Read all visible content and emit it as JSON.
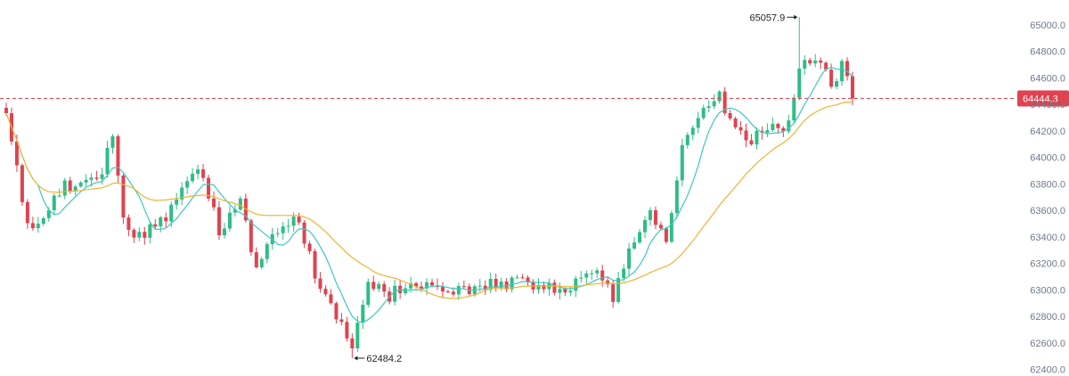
{
  "colors": {
    "up": "#2ebd85",
    "down": "#e0424f",
    "ma_fast": "#3fc8bd",
    "ma_slow": "#f0b335",
    "last_price_line": "#e0424f",
    "axis_text": "#707a8a",
    "annotation_text": "#1e2329"
  },
  "chart_data": {
    "type": "candlestick",
    "title": "",
    "xlabel": "",
    "ylabel": "",
    "grid": false,
    "ylim": [
      62390,
      65080
    ],
    "y_ticks": [
      {
        "value": 65000,
        "label": "65000.0"
      },
      {
        "value": 64800,
        "label": "64800.0"
      },
      {
        "value": 64600,
        "label": "64600.0"
      },
      {
        "value": 64400,
        "label": "64400.0"
      },
      {
        "value": 64200,
        "label": "64200.0"
      },
      {
        "value": 64000,
        "label": "64000.0"
      },
      {
        "value": 63800,
        "label": "63800.0"
      },
      {
        "value": 63600,
        "label": "63600.0"
      },
      {
        "value": 63400,
        "label": "63400.0"
      },
      {
        "value": 63200,
        "label": "63200.0"
      },
      {
        "value": 63000,
        "label": "63000.0"
      },
      {
        "value": 62800,
        "label": "62800.0"
      },
      {
        "value": 62600,
        "label": "62600.0"
      },
      {
        "value": 62400,
        "label": "62400.0"
      }
    ],
    "last_price": {
      "value": 64444.3,
      "label": "64444.3"
    },
    "max_annotation": {
      "index": 149,
      "value": 65057.9,
      "label": "65057.9"
    },
    "min_annotation": {
      "index": 65,
      "value": 62484.2,
      "label": "62484.2"
    },
    "anchors": [
      {
        "i": 0,
        "p": 64330
      },
      {
        "i": 2,
        "p": 63900
      },
      {
        "i": 4,
        "p": 63450
      },
      {
        "i": 7,
        "p": 63520
      },
      {
        "i": 11,
        "p": 63800
      },
      {
        "i": 17,
        "p": 63800
      },
      {
        "i": 20,
        "p": 64150
      },
      {
        "i": 22,
        "p": 63500
      },
      {
        "i": 25,
        "p": 63400
      },
      {
        "i": 30,
        "p": 63550
      },
      {
        "i": 36,
        "p": 63950
      },
      {
        "i": 40,
        "p": 63450
      },
      {
        "i": 44,
        "p": 63700
      },
      {
        "i": 47,
        "p": 63150
      },
      {
        "i": 50,
        "p": 63400
      },
      {
        "i": 55,
        "p": 63550
      },
      {
        "i": 58,
        "p": 63100
      },
      {
        "i": 61,
        "p": 62850
      },
      {
        "i": 65,
        "p": 62600
      },
      {
        "i": 68,
        "p": 63050
      },
      {
        "i": 72,
        "p": 62950
      },
      {
        "i": 76,
        "p": 63100
      },
      {
        "i": 82,
        "p": 62950
      },
      {
        "i": 90,
        "p": 63050
      },
      {
        "i": 98,
        "p": 63050
      },
      {
        "i": 104,
        "p": 62980
      },
      {
        "i": 110,
        "p": 63150
      },
      {
        "i": 114,
        "p": 62950
      },
      {
        "i": 118,
        "p": 63400
      },
      {
        "i": 121,
        "p": 63550
      },
      {
        "i": 124,
        "p": 63350
      },
      {
        "i": 127,
        "p": 64100
      },
      {
        "i": 131,
        "p": 64350
      },
      {
        "i": 134,
        "p": 64450
      },
      {
        "i": 137,
        "p": 64200
      },
      {
        "i": 140,
        "p": 64150
      },
      {
        "i": 144,
        "p": 64200
      },
      {
        "i": 147,
        "p": 64250
      },
      {
        "i": 149,
        "p": 64700
      },
      {
        "i": 152,
        "p": 64750
      },
      {
        "i": 155,
        "p": 64550
      },
      {
        "i": 157,
        "p": 64700
      },
      {
        "i": 159,
        "p": 64444.3
      }
    ],
    "series": [
      {
        "name": "",
        "kind": "ma_fast"
      },
      {
        "name": "",
        "kind": "ma_slow"
      }
    ]
  }
}
